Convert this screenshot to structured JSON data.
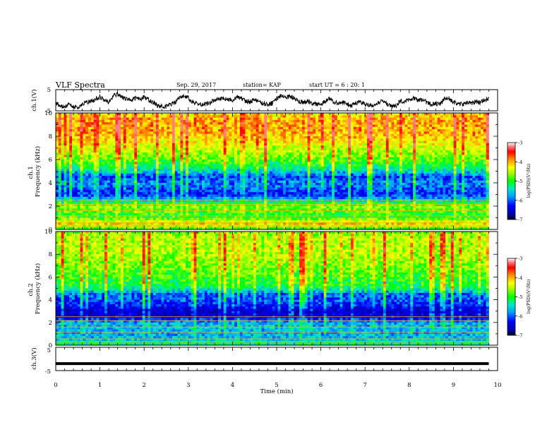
{
  "header": {
    "title": "VLF Spectra",
    "date": "Sep. 29, 2017",
    "station": "station= KAP",
    "start": "start  UT =   6 : 20: 1"
  },
  "colors": {
    "ink": "#000000",
    "colormap": [
      "#0000a8",
      "#0000ff",
      "#00a0ff",
      "#00e8c8",
      "#00ff00",
      "#a0ff00",
      "#ffff00",
      "#ffc800",
      "#ff7800",
      "#ff0000",
      "#ff8080",
      "#ffffff"
    ]
  },
  "chart_data": [
    {
      "id": "ch1v",
      "type": "line",
      "ylabel": "ch.1(V)",
      "ylim": [
        -5,
        5
      ],
      "yticks": [
        "5",
        "-5"
      ],
      "xlim": [
        0,
        10
      ],
      "series": [
        {
          "x": [
            0,
            0.1,
            0.2,
            0.3,
            0.4,
            0.5,
            0.6,
            0.7,
            0.8,
            0.9,
            1.0,
            1.1,
            1.2,
            1.3,
            1.4,
            1.5,
            1.6,
            1.7,
            1.8,
            1.9,
            2.0,
            2.1,
            2.2,
            2.3,
            2.4,
            2.5,
            2.6,
            2.7,
            2.8,
            2.9,
            3.0,
            3.1,
            3.2,
            3.3,
            3.4,
            3.5,
            3.6,
            3.7,
            3.8,
            3.9,
            4.0,
            4.1,
            4.2,
            4.3,
            4.4,
            4.5,
            4.6,
            4.7,
            4.8,
            4.9,
            5.0,
            5.1,
            5.2,
            5.3,
            5.4,
            5.5,
            5.6,
            5.7,
            5.8,
            5.9,
            6.0,
            6.1,
            6.2,
            6.3,
            6.4,
            6.5,
            6.6,
            6.7,
            6.8,
            6.9,
            7.0,
            7.1,
            7.2,
            7.3,
            7.4,
            7.5,
            7.6,
            7.7,
            7.8,
            7.9,
            8.0,
            8.1,
            8.2,
            8.3,
            8.4,
            8.5,
            8.6,
            8.7,
            8.8,
            8.9,
            9.0,
            9.1,
            9.2,
            9.3,
            9.4,
            9.5,
            9.6,
            9.7,
            9.8
          ],
          "y": [
            -1.5,
            -2.5,
            -3.0,
            -2.0,
            -3.0,
            -3.5,
            -2.0,
            -1.0,
            -0.5,
            0.5,
            1.5,
            0.5,
            -1.0,
            2.0,
            3.0,
            1.5,
            0.5,
            0.0,
            1.0,
            0.5,
            1.5,
            0.0,
            -1.0,
            -2.5,
            -3.0,
            -3.0,
            -2.0,
            -1.0,
            1.5,
            2.0,
            1.0,
            -1.0,
            -1.5,
            -2.0,
            -2.0,
            -1.0,
            0.0,
            0.5,
            1.0,
            0.5,
            0.0,
            1.5,
            1.0,
            -0.5,
            -1.0,
            0.5,
            -0.5,
            -1.5,
            -2.0,
            -1.5,
            0.5,
            2.0,
            1.0,
            2.0,
            1.0,
            -0.5,
            -1.0,
            -0.5,
            -1.5,
            -2.0,
            -2.0,
            -0.5,
            1.0,
            -1.0,
            -1.5,
            -1.0,
            -2.0,
            -2.5,
            -1.5,
            -1.0,
            -2.0,
            -2.5,
            -2.0,
            -1.0,
            -0.5,
            -1.5,
            -3.0,
            -2.5,
            -0.5,
            -0.5,
            0.5,
            1.0,
            0.0,
            0.0,
            -1.0,
            -2.0,
            -1.5,
            -2.0,
            1.0,
            1.0,
            -1.0,
            -1.5,
            -2.0,
            -1.0,
            -1.5,
            -0.5,
            -1.0,
            0.0,
            1.0
          ]
        }
      ]
    },
    {
      "id": "ch1",
      "type": "heatmap",
      "ylabel": "ch.1\nFrequency (kHz)",
      "ylim": [
        0,
        10
      ],
      "yticks": [
        "0",
        "2",
        "4",
        "6",
        "8",
        "10"
      ],
      "xlim": [
        0,
        10
      ],
      "colorbar": {
        "label": "log(PSD)(V²/Hz)",
        "range": [
          -7,
          -3
        ],
        "ticks": [
          "-3",
          "-4",
          "-5",
          "-6",
          "-7"
        ]
      },
      "frequency_profile_log_psd": {
        "frequency_khz": [
          0.2,
          0.5,
          1.0,
          1.5,
          2.0,
          2.5,
          3.0,
          3.5,
          4.0,
          4.5,
          5.0,
          5.5,
          6.0,
          6.5,
          7.0,
          7.5,
          8.0,
          8.5,
          9.0,
          9.5,
          10.0
        ],
        "log_psd": [
          -4.8,
          -4.0,
          -5.0,
          -4.9,
          -4.7,
          -5.5,
          -6.2,
          -6.0,
          -5.8,
          -6.1,
          -5.5,
          -5.1,
          -4.8,
          -4.6,
          -4.4,
          -4.2,
          -4.0,
          -3.9,
          -3.9,
          -3.9,
          -4.2
        ]
      }
    },
    {
      "id": "ch2",
      "type": "heatmap",
      "ylabel": "ch.2\nFrequency (kHz)",
      "ylim": [
        0,
        10
      ],
      "yticks": [
        "0",
        "2",
        "4",
        "6",
        "8",
        "10"
      ],
      "xlim": [
        0,
        10
      ],
      "colorbar": {
        "label": "log(PSD)(V²/Hz)",
        "range": [
          -7,
          -3
        ],
        "ticks": [
          "-3",
          "-4",
          "-5",
          "-6",
          "-7"
        ]
      },
      "frequency_profile_log_psd": {
        "frequency_khz": [
          0.2,
          0.5,
          1.0,
          1.5,
          2.0,
          2.5,
          3.0,
          3.5,
          4.0,
          4.5,
          5.0,
          5.5,
          6.0,
          6.5,
          7.0,
          7.5,
          8.0,
          8.5,
          9.0,
          9.5,
          10.0
        ],
        "log_psd": [
          -5.2,
          -5.6,
          -5.7,
          -5.6,
          -5.7,
          -6.4,
          -6.6,
          -6.2,
          -6.0,
          -5.9,
          -5.2,
          -5.0,
          -4.9,
          -4.8,
          -4.7,
          -4.6,
          -4.5,
          -4.5,
          -4.5,
          -4.5,
          -4.7
        ]
      }
    },
    {
      "id": "ch3v",
      "type": "line",
      "ylabel": "ch.3(V)",
      "ylim": [
        -5,
        5
      ],
      "yticks": [
        "5",
        "-5"
      ],
      "xlim": [
        0,
        10
      ],
      "xlabel": "Time (min)",
      "xticks": [
        "0",
        "1",
        "2",
        "3",
        "4",
        "5",
        "6",
        "7",
        "8",
        "9",
        "10"
      ],
      "series": [
        {
          "x": [
            0,
            9.8
          ],
          "y": [
            -2.0,
            -2.0
          ]
        }
      ]
    }
  ]
}
